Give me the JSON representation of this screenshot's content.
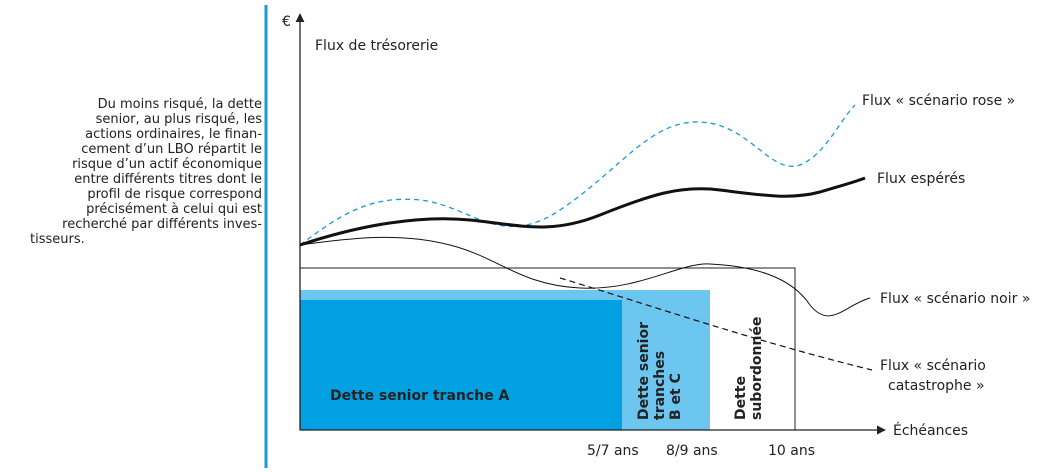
{
  "sidebar": {
    "lines": [
      "Du moins risqué, la dette",
      "senior, au plus risqué, les",
      "actions ordinaires, le finan-",
      "cement d’un LBO répartit le",
      "risque d’un actif économique",
      "entre différents titres dont le",
      "profil de risque correspond",
      "précisément à celui qui est",
      "recherché par différents inves-",
      "tisseurs."
    ]
  },
  "axes": {
    "y_unit": "€",
    "y_label": "Flux de trésorerie",
    "x_label": "Échéances",
    "x_ticks": [
      "5/7 ans",
      "8/9 ans",
      "10 ans"
    ]
  },
  "blocks": {
    "tranche_a": "Dette senior tranche A",
    "tranches_bc": [
      "Dette senior",
      "tranches",
      "B et C"
    ],
    "subordinated": [
      "Dette",
      "subordonnée"
    ]
  },
  "curves": {
    "rose": "Flux « scénario rose »",
    "expected": "Flux espérés",
    "noir": "Flux « scénario noir »",
    "catastrophe": [
      "Flux « scénario",
      "catastrophe »"
    ]
  }
}
